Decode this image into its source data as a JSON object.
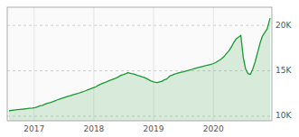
{
  "chart_data": {
    "type": "area",
    "color": "#1a9932",
    "grid": true,
    "xlim": [
      2016.55,
      2020.98
    ],
    "xticks": [
      2017,
      2018,
      2019,
      2020
    ],
    "ylim": [
      9500,
      22000
    ],
    "yticks": [
      {
        "value": 10000,
        "label": "10K"
      },
      {
        "value": 15000,
        "label": "15K"
      },
      {
        "value": 20000,
        "label": "20K"
      }
    ],
    "x": [
      2016.58,
      2016.62,
      2016.67,
      2016.72,
      2016.77,
      2016.82,
      2016.87,
      2016.92,
      2016.97,
      2017.02,
      2017.06,
      2017.1,
      2017.14,
      2017.18,
      2017.22,
      2017.25,
      2017.28,
      2017.32,
      2017.35,
      2017.38,
      2017.42,
      2017.46,
      2017.5,
      2017.54,
      2017.58,
      2017.62,
      2017.65,
      2017.68,
      2017.72,
      2017.75,
      2017.78,
      2017.82,
      2017.86,
      2017.9,
      2017.94,
      2017.98,
      2018.02,
      2018.06,
      2018.1,
      2018.14,
      2018.18,
      2018.22,
      2018.25,
      2018.29,
      2018.33,
      2018.37,
      2018.4,
      2018.44,
      2018.47,
      2018.5,
      2018.54,
      2018.57,
      2018.6,
      2018.63,
      2018.67,
      2018.7,
      2018.73,
      2018.77,
      2018.8,
      2018.84,
      2018.88,
      2018.91,
      2018.95,
      2018.99,
      2019.02,
      2019.06,
      2019.1,
      2019.14,
      2019.18,
      2019.22,
      2019.25,
      2019.28,
      2019.32,
      2019.35,
      2019.38,
      2019.42,
      2019.46,
      2019.5,
      2019.54,
      2019.58,
      2019.62,
      2019.65,
      2019.68,
      2019.72,
      2019.76,
      2019.8,
      2019.84,
      2019.88,
      2019.92,
      2019.96,
      2020.0,
      2020.04,
      2020.07,
      2020.11,
      2020.15,
      2020.19,
      2020.22,
      2020.26,
      2020.3,
      2020.34,
      2020.38,
      2020.42,
      2020.46,
      2020.5,
      2020.54,
      2020.58,
      2020.62,
      2020.66,
      2020.7,
      2020.74,
      2020.78,
      2020.82,
      2020.86,
      2020.9,
      2020.95
    ],
    "values": [
      10600,
      10640,
      10680,
      10720,
      10760,
      10790,
      10830,
      10870,
      10910,
      10960,
      11050,
      11150,
      11200,
      11320,
      11430,
      11480,
      11530,
      11620,
      11700,
      11780,
      11880,
      11960,
      12050,
      12140,
      12220,
      12300,
      12360,
      12410,
      12480,
      12550,
      12620,
      12700,
      12800,
      12900,
      13000,
      13100,
      13200,
      13350,
      13480,
      13600,
      13700,
      13800,
      13900,
      14000,
      14100,
      14200,
      14300,
      14450,
      14550,
      14600,
      14700,
      14800,
      14750,
      14700,
      14650,
      14580,
      14500,
      14420,
      14350,
      14280,
      14150,
      14050,
      13900,
      13800,
      13750,
      13700,
      13780,
      13850,
      14000,
      14100,
      14300,
      14450,
      14550,
      14650,
      14700,
      14780,
      14850,
      14900,
      14980,
      15050,
      15120,
      15180,
      15250,
      15320,
      15380,
      15450,
      15520,
      15580,
      15650,
      15720,
      15800,
      15900,
      16050,
      16200,
      16400,
      16650,
      16900,
      17200,
      17600,
      18100,
      18500,
      18700,
      18900,
      16500,
      15200,
      14700,
      14600,
      15200,
      16000,
      17000,
      18000,
      18800,
      19200,
      19600,
      20800
    ]
  }
}
